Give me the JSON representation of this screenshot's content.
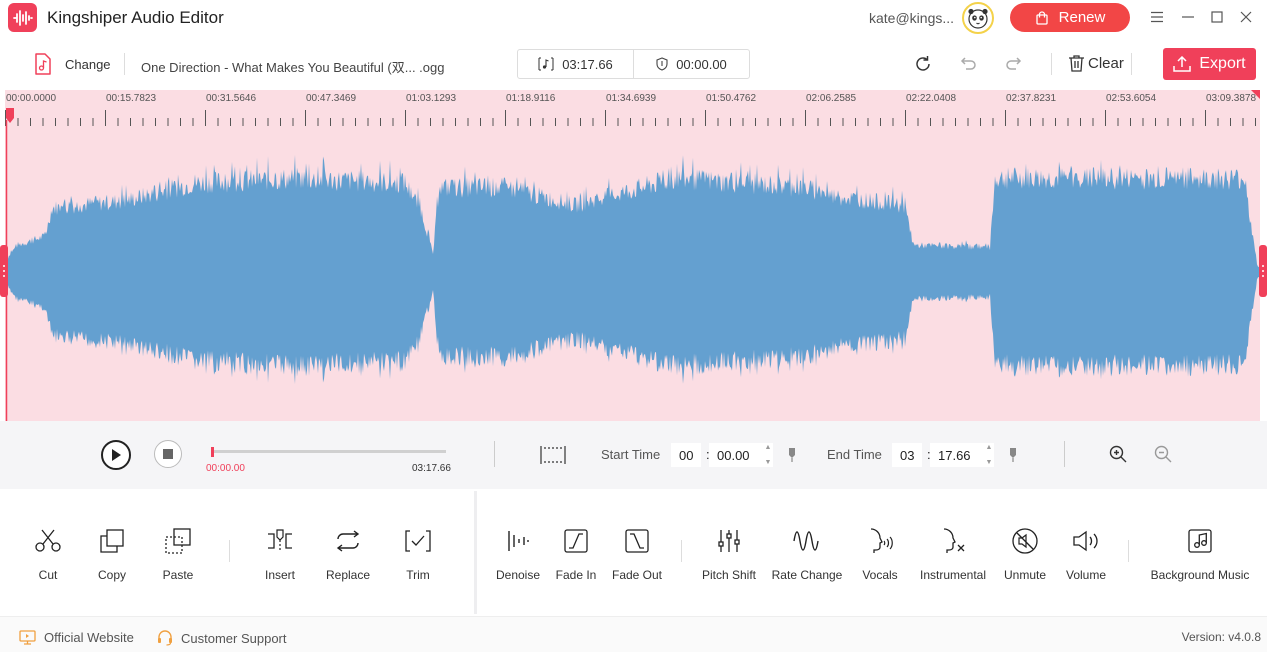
{
  "app": {
    "title": "Kingshiper Audio Editor"
  },
  "header": {
    "user_email": "kate@kings...",
    "renew_label": "Renew"
  },
  "toolbar": {
    "change_label": "Change",
    "file_name": "One Direction - What Makes You Beautiful (双... .ogg",
    "duration": "03:17.66",
    "selection_duration": "00:00.00",
    "clear_label": "Clear",
    "export_label": "Export"
  },
  "timeline": {
    "labels": [
      "00:00.0000",
      "00:15.7823",
      "00:31.5646",
      "00:47.3469",
      "01:03.1293",
      "01:18.9116",
      "01:34.6939",
      "01:50.4762",
      "02:06.2585",
      "02:22.0408",
      "02:37.8231",
      "02:53.6054",
      "03:09.3878"
    ]
  },
  "playback": {
    "current_time": "00:00.00",
    "total_time": "03:17.66",
    "progress": 0.0
  },
  "selection": {
    "start_label": "Start Time",
    "start_min": "00",
    "start_sec": "00.00",
    "end_label": "End Time",
    "end_min": "03",
    "end_sec": "17.66"
  },
  "tools": {
    "edit": [
      {
        "name": "cut",
        "label": "Cut"
      },
      {
        "name": "copy",
        "label": "Copy"
      },
      {
        "name": "paste",
        "label": "Paste"
      },
      {
        "name": "insert",
        "label": "Insert"
      },
      {
        "name": "replace",
        "label": "Replace"
      },
      {
        "name": "trim",
        "label": "Trim"
      }
    ],
    "effects": [
      {
        "name": "denoise",
        "label": "Denoise"
      },
      {
        "name": "fade-in",
        "label": "Fade In"
      },
      {
        "name": "fade-out",
        "label": "Fade Out"
      },
      {
        "name": "pitch-shift",
        "label": "Pitch Shift"
      },
      {
        "name": "rate-change",
        "label": "Rate Change"
      },
      {
        "name": "vocals",
        "label": "Vocals"
      },
      {
        "name": "instrumental",
        "label": "Instrumental"
      },
      {
        "name": "unmute",
        "label": "Unmute"
      },
      {
        "name": "volume",
        "label": "Volume"
      },
      {
        "name": "background-music",
        "label": "Background Music"
      }
    ]
  },
  "footer": {
    "website_label": "Official Website",
    "support_label": "Customer Support",
    "version": "Version: v4.0.8"
  },
  "colors": {
    "accent": "#f0405a",
    "renew": "#f24646",
    "waveform": "#64a0d0",
    "wave_background": "#fbdde3"
  }
}
